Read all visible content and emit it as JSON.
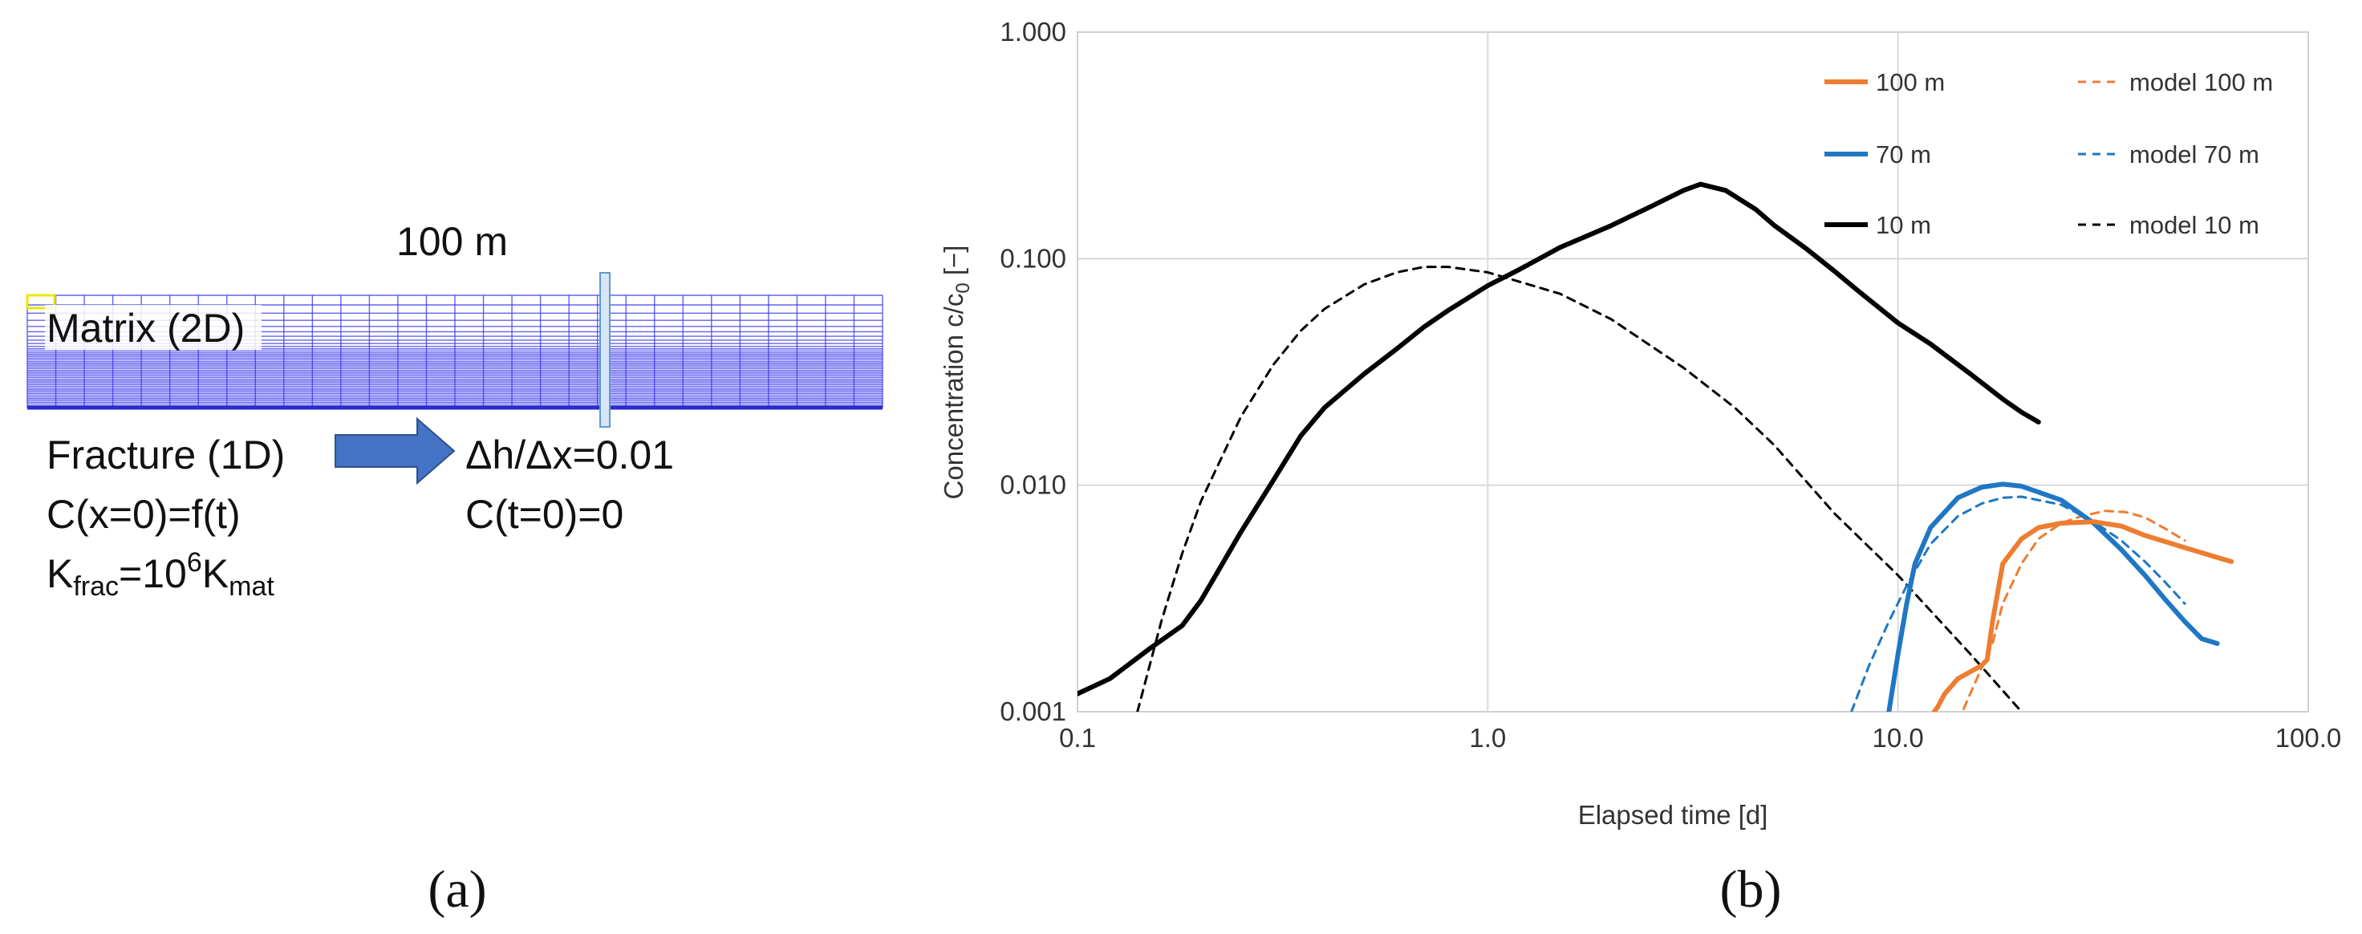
{
  "panel_a": {
    "length_label": "100 m",
    "matrix_label": "Matrix (2D)",
    "fracture_label": "Fracture (1D)",
    "gradient_label": "Δh/Δx=0.01",
    "bc_label": "C(x=0)=f(t)",
    "ic_label": "C(t=0)=0",
    "k_base": "K",
    "k_sub1": "frac",
    "k_mid": "=10",
    "k_sup": "6",
    "k_base2": "K",
    "k_sub2": "mat",
    "caption": "(a)",
    "colors": {
      "mesh": "#3b3bf0",
      "arrow": "#4472c4",
      "marker": "#ffff00"
    }
  },
  "panel_b": {
    "caption": "(b)"
  },
  "chart_data": {
    "type": "line",
    "title": "",
    "xlabel": "Elapsed time [d]",
    "ylabel_main": "Concentration c/c",
    "ylabel_sub": "0",
    "ylabel_tail": " [−]",
    "x_scale": "log",
    "y_scale": "log",
    "xlim": [
      0.1,
      100
    ],
    "ylim": [
      0.001,
      1
    ],
    "x_ticks": [
      0.1,
      1,
      10,
      100
    ],
    "x_tick_labels": [
      "0.1",
      "1.0",
      "10.0",
      "100.0"
    ],
    "y_ticks": [
      0.001,
      0.01,
      0.1,
      1
    ],
    "y_tick_labels": [
      "0.001",
      "0.010",
      "0.100",
      "1.000"
    ],
    "grid": true,
    "legend_placement": "top-right",
    "series": [
      {
        "name": "100 m",
        "color": "#ed7d31",
        "style": "solid",
        "points": [
          [
            12.0,
            0.00095
          ],
          [
            12.5,
            0.00105
          ],
          [
            13.0,
            0.0012
          ],
          [
            14.0,
            0.0014
          ],
          [
            15.0,
            0.0015
          ],
          [
            16.0,
            0.0016
          ],
          [
            16.5,
            0.0017
          ],
          [
            17.0,
            0.0025
          ],
          [
            18.0,
            0.0045
          ],
          [
            20.0,
            0.0058
          ],
          [
            22.0,
            0.0065
          ],
          [
            25.0,
            0.0068
          ],
          [
            30.0,
            0.0069
          ],
          [
            35.0,
            0.0066
          ],
          [
            40.0,
            0.006
          ],
          [
            50.0,
            0.0053
          ],
          [
            60.0,
            0.0048
          ],
          [
            65.0,
            0.0046
          ]
        ]
      },
      {
        "name": "70 m",
        "color": "#1f77c4",
        "style": "solid",
        "points": [
          [
            9.5,
            0.001
          ],
          [
            10.0,
            0.0018
          ],
          [
            10.5,
            0.003
          ],
          [
            11.0,
            0.0045
          ],
          [
            12.0,
            0.0065
          ],
          [
            14.0,
            0.0088
          ],
          [
            16.0,
            0.0098
          ],
          [
            18.0,
            0.0101
          ],
          [
            20.0,
            0.0099
          ],
          [
            25.0,
            0.0086
          ],
          [
            30.0,
            0.0068
          ],
          [
            35.0,
            0.0052
          ],
          [
            40.0,
            0.004
          ],
          [
            45.0,
            0.0031
          ],
          [
            50.0,
            0.0025
          ],
          [
            55.0,
            0.0021
          ],
          [
            60.0,
            0.002
          ]
        ]
      },
      {
        "name": "10 m",
        "color": "#000000",
        "style": "solid",
        "points": [
          [
            0.1,
            0.0012
          ],
          [
            0.12,
            0.0014
          ],
          [
            0.15,
            0.0019
          ],
          [
            0.18,
            0.0024
          ],
          [
            0.2,
            0.0031
          ],
          [
            0.25,
            0.0062
          ],
          [
            0.3,
            0.0105
          ],
          [
            0.35,
            0.0165
          ],
          [
            0.4,
            0.022
          ],
          [
            0.5,
            0.031
          ],
          [
            0.6,
            0.04
          ],
          [
            0.7,
            0.05
          ],
          [
            0.8,
            0.059
          ],
          [
            1.0,
            0.076
          ],
          [
            1.2,
            0.09
          ],
          [
            1.5,
            0.112
          ],
          [
            2.0,
            0.14
          ],
          [
            2.5,
            0.17
          ],
          [
            3.0,
            0.2
          ],
          [
            3.3,
            0.213
          ],
          [
            3.8,
            0.2
          ],
          [
            4.5,
            0.165
          ],
          [
            5.0,
            0.14
          ],
          [
            6.0,
            0.11
          ],
          [
            7.0,
            0.088
          ],
          [
            8.0,
            0.072
          ],
          [
            10.0,
            0.052
          ],
          [
            12.0,
            0.042
          ],
          [
            15.0,
            0.031
          ],
          [
            18.0,
            0.024
          ],
          [
            20.0,
            0.021
          ],
          [
            22.0,
            0.019
          ]
        ]
      },
      {
        "name": "model 100 m",
        "color": "#ed7d31",
        "style": "dashed",
        "points": [
          [
            14.0,
            0.0009
          ],
          [
            15.0,
            0.0012
          ],
          [
            17.0,
            0.002
          ],
          [
            18.0,
            0.003
          ],
          [
            20.0,
            0.0045
          ],
          [
            22.0,
            0.0058
          ],
          [
            25.0,
            0.0068
          ],
          [
            28.0,
            0.0073
          ],
          [
            32.0,
            0.0077
          ],
          [
            36.0,
            0.0076
          ],
          [
            40.0,
            0.0072
          ],
          [
            45.0,
            0.0064
          ],
          [
            50.0,
            0.0057
          ]
        ]
      },
      {
        "name": "model 70 m",
        "color": "#1f77c4",
        "style": "dashed",
        "points": [
          [
            7.7,
            0.001
          ],
          [
            8.5,
            0.0016
          ],
          [
            9.5,
            0.0025
          ],
          [
            10.5,
            0.0036
          ],
          [
            12.0,
            0.0055
          ],
          [
            14.0,
            0.0073
          ],
          [
            16.0,
            0.0083
          ],
          [
            18.0,
            0.0088
          ],
          [
            20.0,
            0.0089
          ],
          [
            25.0,
            0.0082
          ],
          [
            30.0,
            0.0069
          ],
          [
            35.0,
            0.0057
          ],
          [
            40.0,
            0.0046
          ],
          [
            45.0,
            0.0037
          ],
          [
            50.0,
            0.003
          ]
        ]
      },
      {
        "name": "model 10 m",
        "color": "#000000",
        "style": "dashed",
        "points": [
          [
            0.14,
            0.001
          ],
          [
            0.16,
            0.0025
          ],
          [
            0.18,
            0.005
          ],
          [
            0.2,
            0.0085
          ],
          [
            0.25,
            0.02
          ],
          [
            0.3,
            0.034
          ],
          [
            0.35,
            0.048
          ],
          [
            0.4,
            0.06
          ],
          [
            0.5,
            0.077
          ],
          [
            0.6,
            0.087
          ],
          [
            0.7,
            0.092
          ],
          [
            0.8,
            0.092
          ],
          [
            1.0,
            0.087
          ],
          [
            1.5,
            0.07
          ],
          [
            2.0,
            0.054
          ],
          [
            3.0,
            0.033
          ],
          [
            4.0,
            0.022
          ],
          [
            5.0,
            0.015
          ],
          [
            7.0,
            0.0075
          ],
          [
            10.0,
            0.004
          ],
          [
            15.0,
            0.0018
          ],
          [
            20.0,
            0.001
          ]
        ]
      }
    ]
  }
}
